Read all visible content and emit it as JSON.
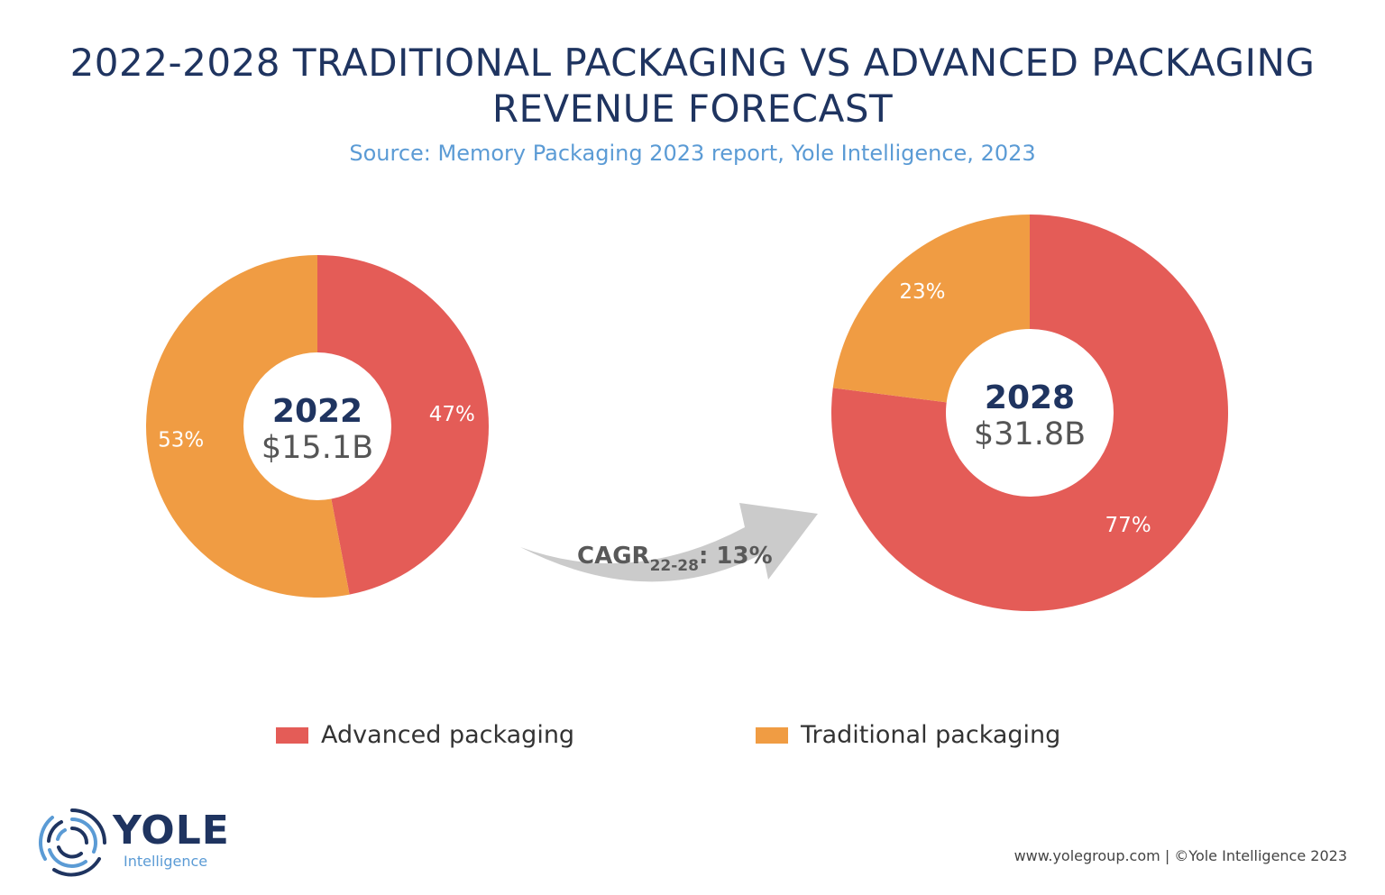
{
  "chart_data": {
    "type": "pie",
    "title": "2022-2028 TRADITIONAL PACKAGING VS ADVANCED PACKAGING REVENUE FORECAST",
    "subtitle": "Source: Memory Packaging 2023 report, Yole Intelligence, 2023",
    "legend": {
      "placement": "bottom",
      "entries": [
        "Advanced packaging",
        "Traditional packaging"
      ]
    },
    "colors": {
      "Advanced packaging": "#e45c57",
      "Traditional packaging": "#f09c43"
    },
    "charts": [
      {
        "year": "2022",
        "total": "$15.1B",
        "slices": [
          {
            "name": "Advanced packaging",
            "value": 47,
            "label": "47%"
          },
          {
            "name": "Traditional packaging",
            "value": 53,
            "label": "53%"
          }
        ]
      },
      {
        "year": "2028",
        "total": "$31.8B",
        "slices": [
          {
            "name": "Advanced packaging",
            "value": 77,
            "label": "77%"
          },
          {
            "name": "Traditional packaging",
            "value": 23,
            "label": "23%"
          }
        ]
      }
    ],
    "annotation": {
      "main": "CAGR",
      "subscript": "22-28",
      "value": ": 13%"
    }
  },
  "footer": "www.yolegroup.com | ©Yole Intelligence 2023",
  "logo": {
    "name": "YOLE",
    "sub": "Intelligence"
  }
}
